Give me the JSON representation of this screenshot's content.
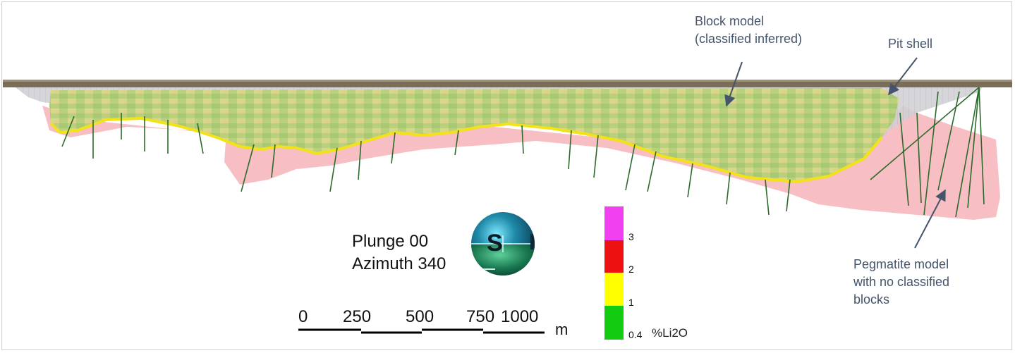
{
  "annotations": {
    "block_model": [
      "Block model",
      "(classified inferred)"
    ],
    "pit_shell": "Pit shell",
    "pegmatite": [
      "Pegmatite model",
      "with no classified",
      "blocks"
    ]
  },
  "view": {
    "plunge": "Plunge 00",
    "azimuth": "Azimuth 340",
    "compass_letter": "S"
  },
  "scale_bar": {
    "ticks": [
      "0",
      "250",
      "500",
      "750",
      "1000"
    ],
    "unit": "m"
  },
  "legend": {
    "title": "%Li2O",
    "items": [
      {
        "label": "3",
        "color": "#f040f0"
      },
      {
        "label": "2",
        "color": "#ee1111"
      },
      {
        "label": "1",
        "color": "#ffff00"
      },
      {
        "label": "0.4",
        "color": "#11cc11"
      }
    ]
  },
  "colors": {
    "topography": "#7a6e58",
    "block_model": "#b7cf7a",
    "block_model_yellow": "#e3d98a",
    "pegmatite": "#f6b8bc",
    "pit_shell": "#c8c8cc",
    "drillhole": "#2c6a2c",
    "callout_text": "#44546a"
  }
}
